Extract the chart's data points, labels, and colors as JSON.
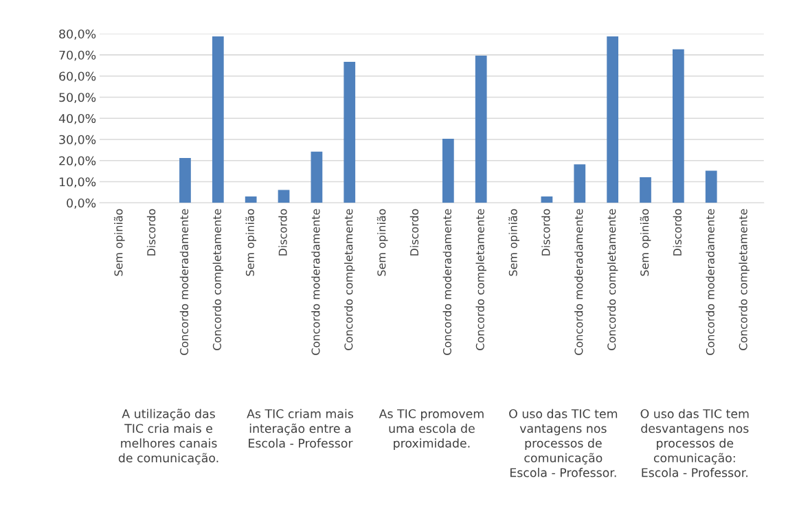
{
  "chart_data": {
    "type": "bar",
    "categories": [
      "Sem opinião",
      "Discordo",
      "Concordo moderadamente",
      "Concordo completamente",
      "Sem opinião",
      "Discordo",
      "Concordo moderadamente",
      "Concordo completamente",
      "Sem opinião",
      "Discordo",
      "Concordo moderadamente",
      "Concordo completamente",
      "Sem opinião",
      "Discordo",
      "Concordo moderadamente",
      "Concordo completamente",
      "Sem opinião",
      "Discordo",
      "Concordo moderadamente",
      "Concordo completamente"
    ],
    "values": [
      0,
      0,
      21.2,
      78.8,
      3.0,
      6.1,
      24.2,
      66.7,
      0,
      0,
      30.3,
      69.7,
      0,
      3.0,
      18.2,
      78.8,
      12.1,
      72.7,
      15.2,
      0
    ],
    "color": "#4f81bd",
    "ylim": [
      0,
      80
    ],
    "yticks": [
      {
        "value": 0,
        "label": "0,0%"
      },
      {
        "value": 10,
        "label": "10,0%"
      },
      {
        "value": 20,
        "label": "20,0%"
      },
      {
        "value": 30,
        "label": "30,0%"
      },
      {
        "value": 40,
        "label": "40,0%"
      },
      {
        "value": 50,
        "label": "50,0%"
      },
      {
        "value": 60,
        "label": "60,0%"
      },
      {
        "value": 70,
        "label": "70,0%"
      },
      {
        "value": 80,
        "label": "80,0%"
      }
    ],
    "grid": "y",
    "annotations": [
      "A utilização das\nTIC cria mais e\nmelhores canais\nde comunicação.",
      "As TIC criam mais\ninteração entre a\nEscola - Professor",
      "As TIC promovem\numa escola de\nproximidade.",
      "O uso das TIC tem\nvantagens nos\nprocessos de\ncomunicação\nEscola - Professor.",
      "O uso das TIC tem\ndesvantagens nos\nprocessos de\ncomunicação:\nEscola - Professor."
    ]
  }
}
